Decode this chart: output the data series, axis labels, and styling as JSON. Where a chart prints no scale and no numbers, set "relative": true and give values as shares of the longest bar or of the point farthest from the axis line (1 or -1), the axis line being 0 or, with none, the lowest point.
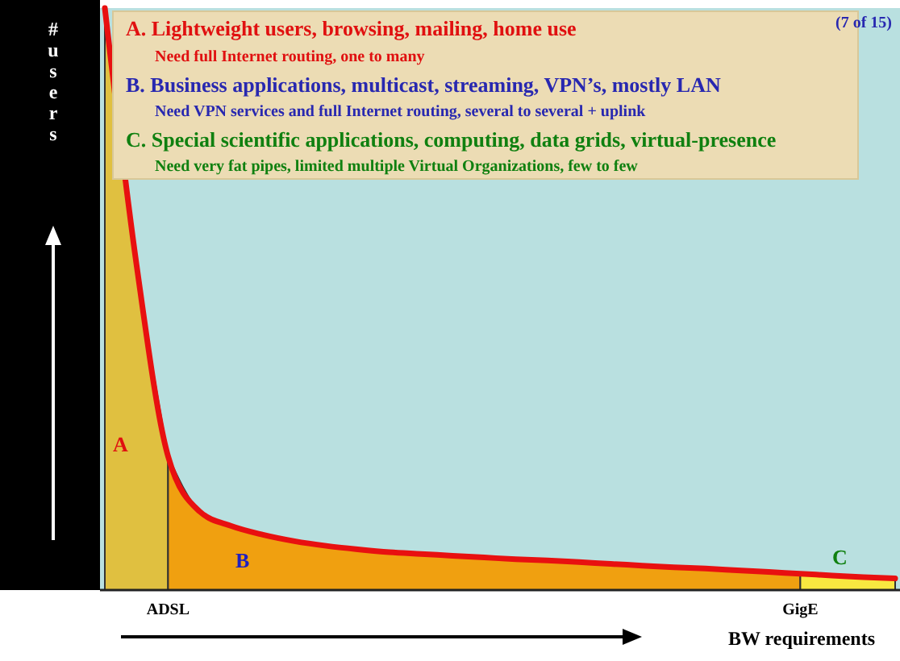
{
  "chart_data": {
    "type": "area",
    "relative": true,
    "xlabel": "BW requirements",
    "ylabel": "# users",
    "categories": [
      null,
      null,
      "ADSL",
      null,
      null,
      null,
      null,
      null,
      null,
      null,
      null,
      null,
      null,
      null,
      null,
      null,
      null,
      null,
      null,
      null,
      null,
      null,
      "GigE",
      null,
      null,
      null
    ],
    "series": [
      {
        "name": "A",
        "color": "#e0c040",
        "values": [
          1,
          0.56,
          0.23,
          null,
          null,
          null,
          null,
          null,
          null,
          null,
          null,
          null,
          null,
          null,
          null,
          null,
          null,
          null,
          null,
          null,
          null,
          null,
          null,
          null,
          null,
          null
        ]
      },
      {
        "name": "B",
        "color": "#f0a010",
        "values": [
          null,
          null,
          0.23,
          0.135,
          0.11,
          0.095,
          0.084,
          0.076,
          0.07,
          0.065,
          0.062,
          0.059,
          0.056,
          0.053,
          0.051,
          0.048,
          0.045,
          0.042,
          0.039,
          0.037,
          0.034,
          0.031,
          0.028,
          null,
          null,
          null
        ]
      },
      {
        "name": "C",
        "color": "#f8e840",
        "values": [
          null,
          null,
          null,
          null,
          null,
          null,
          null,
          null,
          null,
          null,
          null,
          null,
          null,
          null,
          null,
          null,
          null,
          null,
          null,
          null,
          null,
          null,
          0.028,
          0.025,
          0.022,
          0.02
        ]
      },
      {
        "type": "line",
        "color": "#e81010",
        "values": [
          1,
          0.56,
          0.23,
          0.135,
          0.11,
          0.095,
          0.084,
          0.076,
          0.07,
          0.065,
          0.062,
          0.059,
          0.056,
          0.053,
          0.051,
          0.048,
          0.045,
          0.042,
          0.039,
          0.037,
          0.034,
          0.031,
          0.028,
          0.025,
          0.022,
          0.02
        ]
      }
    ],
    "annotations": [
      "A. Lightweight users, browsing, mailing, home use",
      "Need full Internet routing, one to many",
      "B. Business applications, multicast, streaming, VPN’s, mostly LAN",
      "Need VPN services and full Internet routing, several to several + uplink",
      "C. Special scientific applications, computing, data grids, virtual-presence",
      "Need very fat pipes, limited multiple Virtual Organizations, few to few",
      "(7 of 15)"
    ]
  }
}
